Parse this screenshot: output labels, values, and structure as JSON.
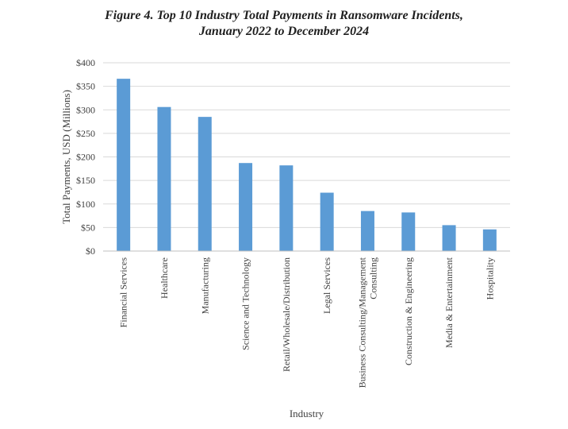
{
  "chart_data": {
    "type": "bar",
    "title": [
      "Figure 4. Top 10 Industry Total Payments in Ransomware Incidents,",
      "January 2022 to December 2024"
    ],
    "xlabel": "Industry",
    "ylabel": "Total Payments, USD (Millions)",
    "ylim": [
      0,
      400
    ],
    "yticks": [
      0,
      50,
      100,
      150,
      200,
      250,
      300,
      350,
      400
    ],
    "ytick_labels": [
      "$0",
      "$50",
      "$100",
      "$150",
      "$200",
      "$250",
      "$300",
      "$350",
      "$400"
    ],
    "grid": true,
    "legend": "none",
    "bar_color": "#5B9BD5",
    "categories": [
      [
        "Financial Services"
      ],
      [
        "Healthcare"
      ],
      [
        "Manufacturing"
      ],
      [
        "Science and Technology"
      ],
      [
        "Retail/Wholesale/Distribution"
      ],
      [
        "Legal Services"
      ],
      [
        "Business Consulting/Management",
        "Consulting"
      ],
      [
        "Construction & Engineering"
      ],
      [
        "Media & Entertainment"
      ],
      [
        "Hospitality"
      ]
    ],
    "values": [
      366,
      306,
      285,
      187,
      182,
      124,
      85,
      82,
      55,
      46
    ]
  }
}
